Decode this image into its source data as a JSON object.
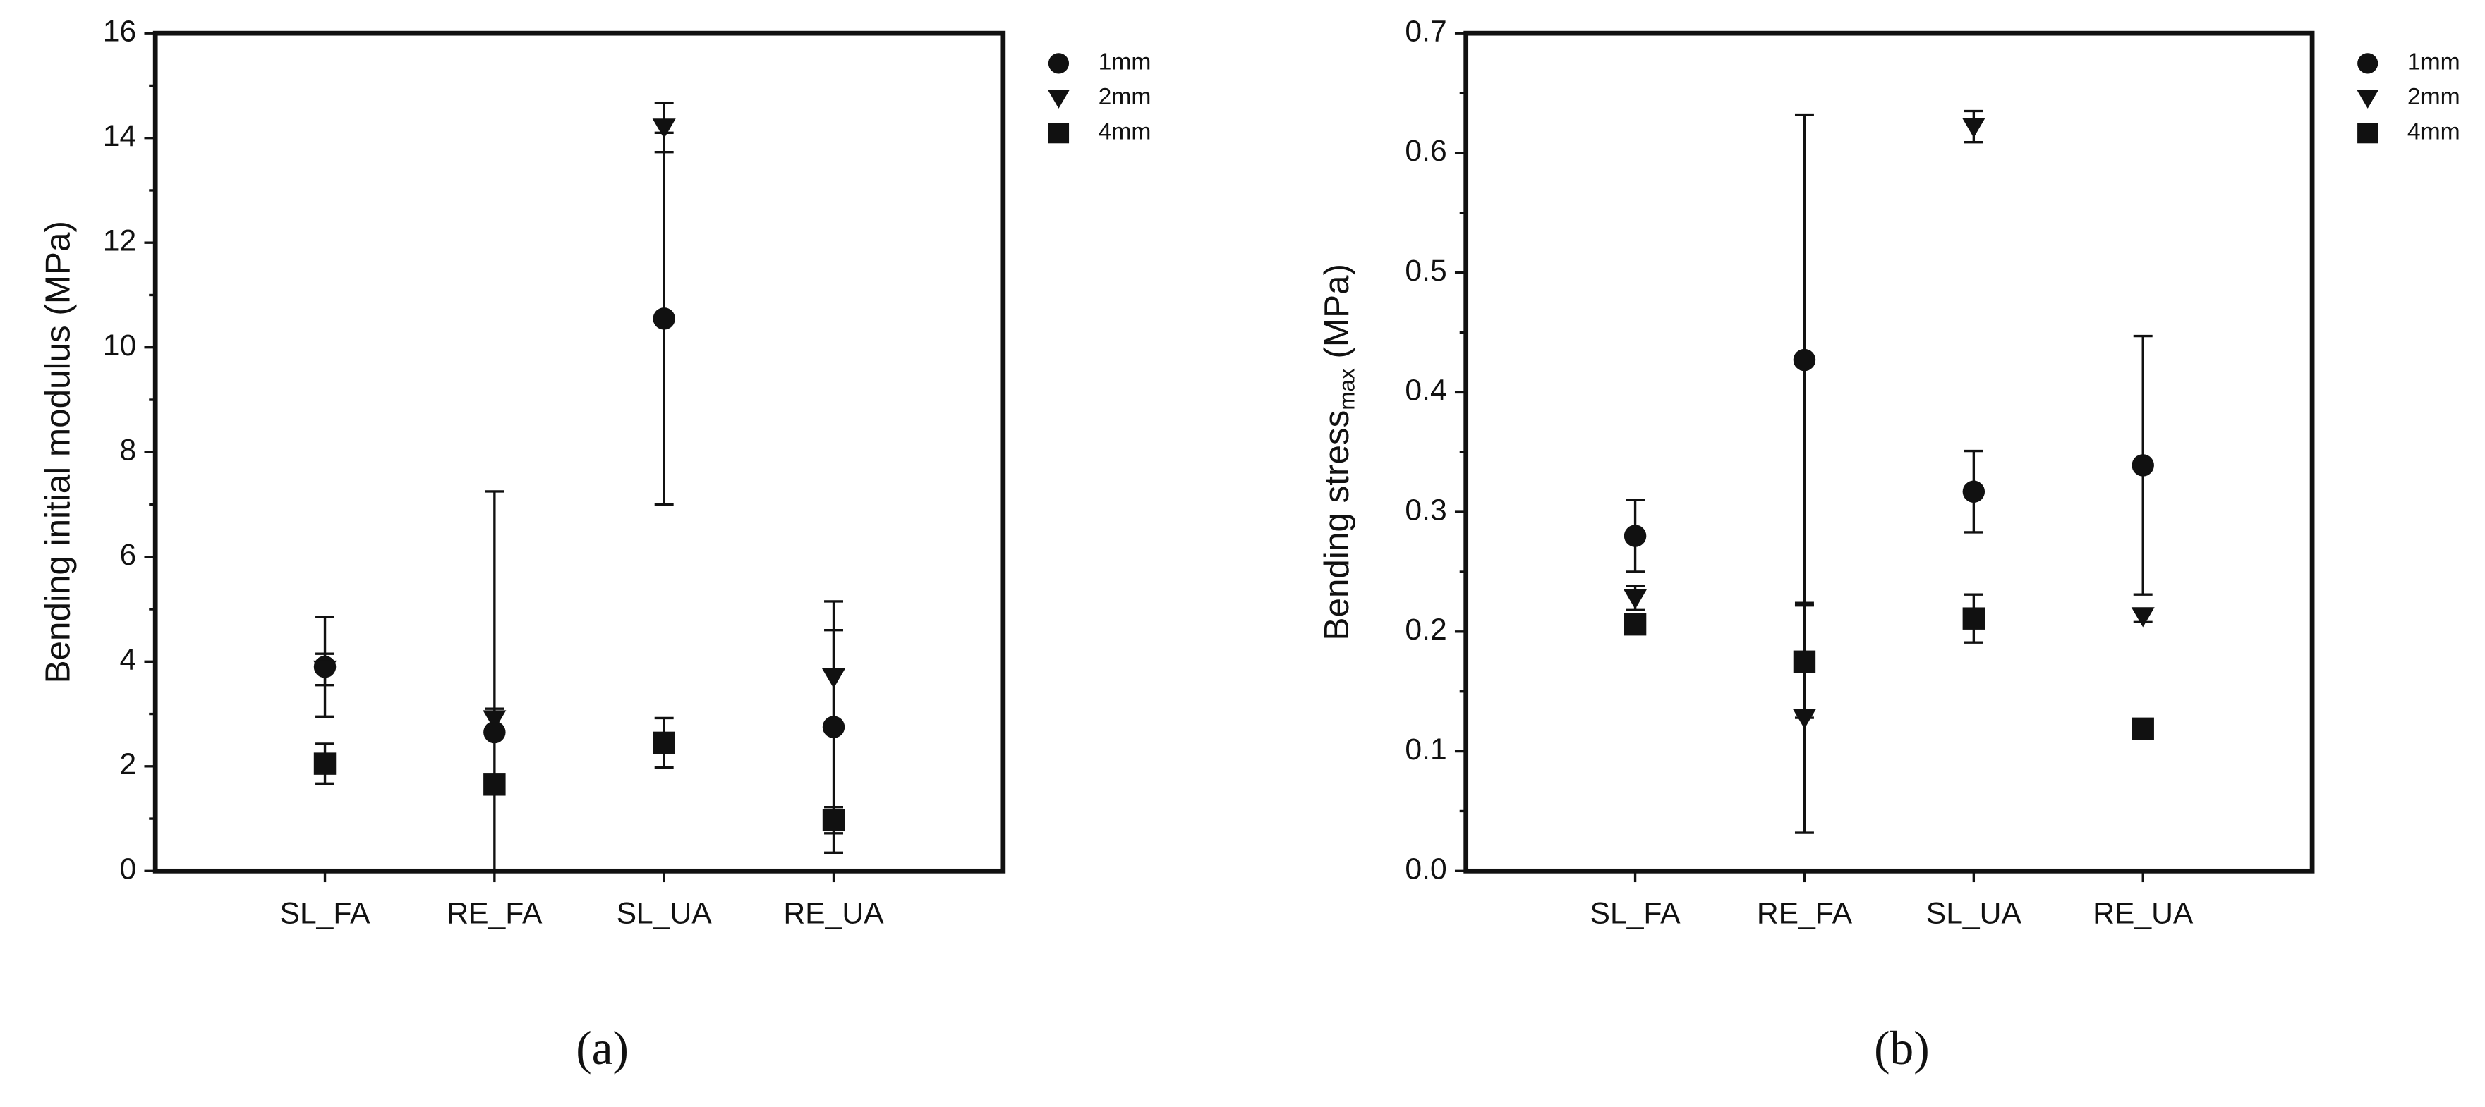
{
  "chart_data": [
    {
      "type": "scatter",
      "caption": "(a)",
      "ylabel": [
        "Bending initial modulus (MPa)"
      ],
      "categories": [
        "SL_FA",
        "RE_FA",
        "SL_UA",
        "RE_UA"
      ],
      "ylim": [
        0,
        16
      ],
      "yticks": [
        0,
        2,
        4,
        6,
        8,
        10,
        12,
        14,
        16
      ],
      "yminor_ticks": [
        1,
        3,
        5,
        7,
        9,
        11,
        13,
        15
      ],
      "series": [
        {
          "name": "1mm",
          "marker": "circle",
          "color": "#111111",
          "values": [
            3.9,
            2.65,
            10.55,
            2.75
          ],
          "errors": [
            0.95,
            4.6,
            3.55,
            2.4
          ]
        },
        {
          "name": "2mm",
          "marker": "triangle-down",
          "color": "#111111",
          "values": [
            3.85,
            2.9,
            14.2,
            3.7
          ],
          "errors": [
            0.3,
            0.2,
            0.47,
            0.9
          ]
        },
        {
          "name": "4mm",
          "marker": "square",
          "color": "#111111",
          "values": [
            2.05,
            1.65,
            2.45,
            0.97
          ],
          "errors": [
            0.38,
            0.1,
            0.47,
            0.25
          ]
        }
      ]
    },
    {
      "type": "scatter",
      "caption": "(b)",
      "ylabel": [
        "Bending stress",
        "max",
        " (MPa)"
      ],
      "categories": [
        "SL_FA",
        "RE_FA",
        "SL_UA",
        "RE_UA"
      ],
      "ylim": [
        0,
        0.7
      ],
      "yticks": [
        {
          "value": 0,
          "label": "0.0"
        },
        0.1,
        0.2,
        0.3,
        0.4,
        0.5,
        0.6,
        0.7
      ],
      "yminor_ticks": [
        0.05,
        0.15,
        0.25,
        0.35,
        0.45,
        0.55,
        0.65
      ],
      "series": [
        {
          "name": "1mm",
          "marker": "circle",
          "color": "#111111",
          "values": [
            0.28,
            0.427,
            0.317,
            0.339
          ],
          "errors": [
            0.03,
            0.205,
            0.034,
            0.108
          ]
        },
        {
          "name": "2mm",
          "marker": "triangle-down",
          "color": "#111111",
          "values": [
            0.228,
            0.128,
            0.622,
            0.213
          ],
          "errors": [
            0.01,
            0.096,
            0.013,
            0.005
          ]
        },
        {
          "name": "4mm",
          "marker": "square",
          "color": "#111111",
          "values": [
            0.206,
            0.175,
            0.211,
            0.119
          ],
          "errors": [
            0.005,
            0.047,
            0.02,
            0.003
          ]
        }
      ]
    }
  ]
}
